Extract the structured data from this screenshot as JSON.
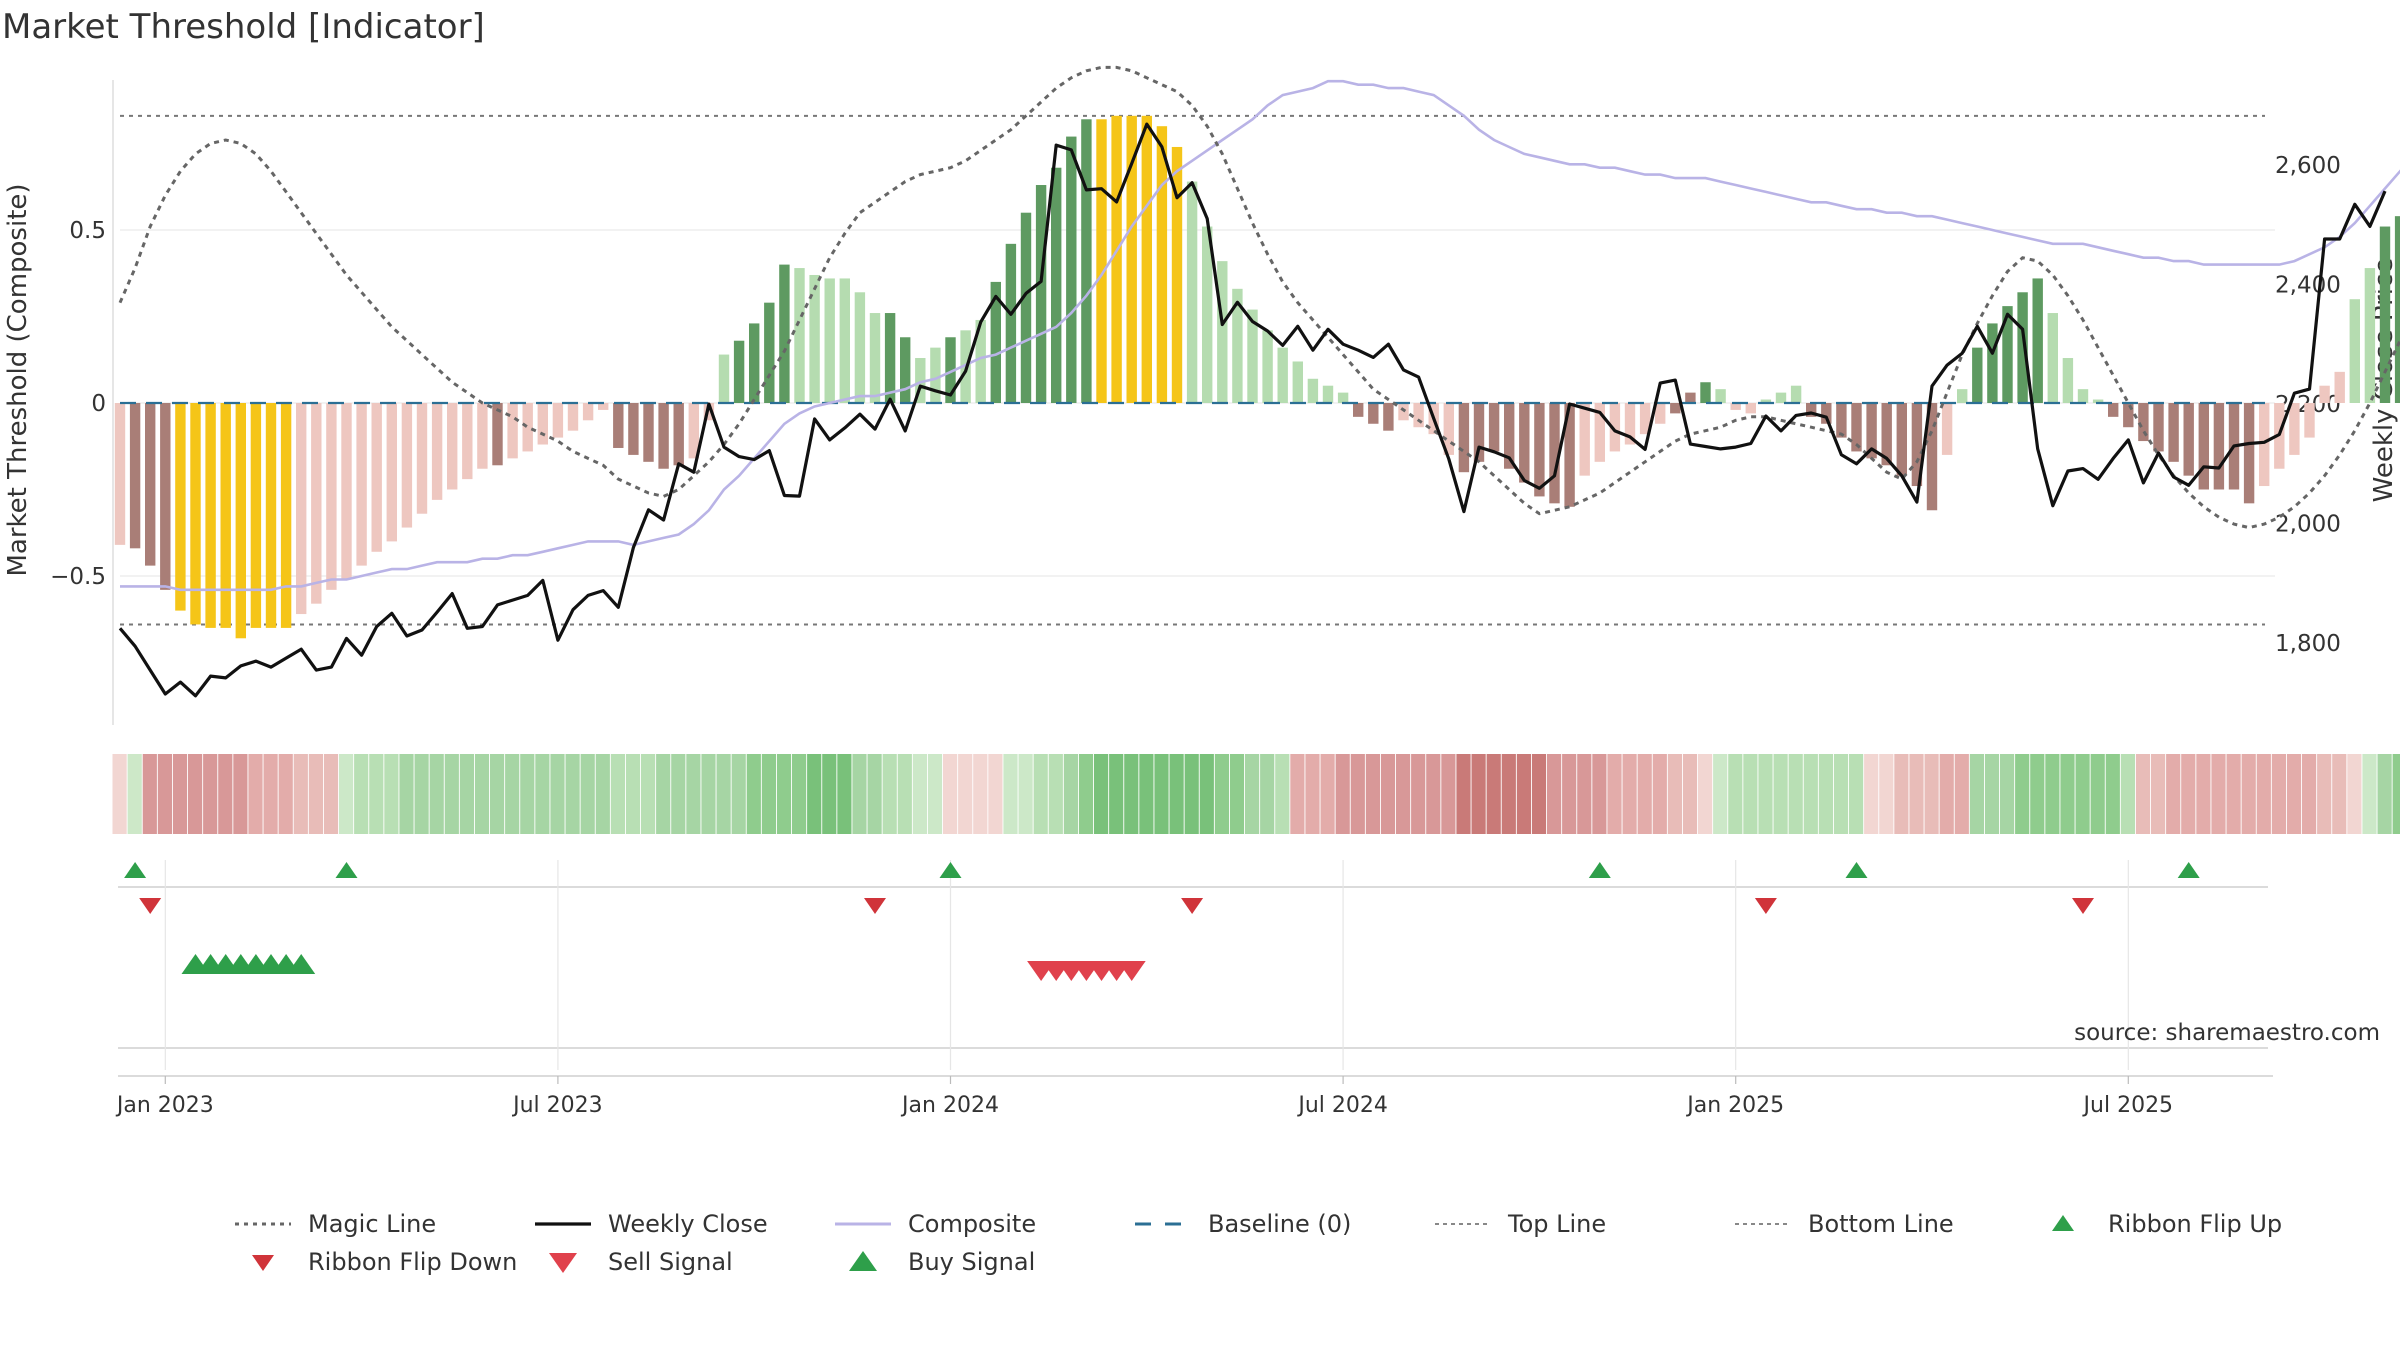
{
  "chart_data": {
    "type": "bar",
    "title": "Market Threshold [Indicator]",
    "ylabel_left": "Market Threshold (Composite)",
    "ylabel_right": "Weekly Close Price",
    "source": "source: sharemaestro.com",
    "x_ticks": [
      "Jan 2023",
      "Jul 2023",
      "Jan 2024",
      "Jul 2024",
      "Jan 2025",
      "Jul 2025"
    ],
    "x_tick_weeks": [
      3,
      29,
      55,
      81,
      107,
      133
    ],
    "left_ticks": [
      "0.5",
      "0",
      "−0.5"
    ],
    "left_tick_values": [
      0.5,
      0,
      -0.5
    ],
    "right_ticks": [
      "2,600",
      "2,400",
      "2,200",
      "2,000",
      "1,800"
    ],
    "right_tick_values": [
      2600,
      2400,
      2200,
      2000,
      1800
    ],
    "ylim_left": [
      -0.93,
      0.93
    ],
    "ylim_right": [
      1660,
      2680
    ],
    "top_line": 0.83,
    "bottom_line": -0.64,
    "composite": [
      -0.41,
      -0.42,
      -0.47,
      -0.54,
      -0.6,
      -0.64,
      -0.65,
      -0.65,
      -0.68,
      -0.65,
      -0.65,
      -0.65,
      -0.61,
      -0.58,
      -0.54,
      -0.51,
      -0.47,
      -0.43,
      -0.4,
      -0.36,
      -0.32,
      -0.28,
      -0.25,
      -0.22,
      -0.19,
      -0.18,
      -0.16,
      -0.14,
      -0.12,
      -0.1,
      -0.08,
      -0.05,
      -0.02,
      -0.13,
      -0.15,
      -0.17,
      -0.19,
      -0.18,
      -0.16,
      -0.05,
      0.14,
      0.18,
      0.23,
      0.29,
      0.4,
      0.39,
      0.37,
      0.36,
      0.36,
      0.32,
      0.26,
      0.26,
      0.19,
      0.13,
      0.16,
      0.19,
      0.21,
      0.24,
      0.35,
      0.46,
      0.55,
      0.63,
      0.68,
      0.77,
      0.82,
      0.82,
      0.83,
      0.83,
      0.83,
      0.8,
      0.74,
      0.64,
      0.51,
      0.41,
      0.33,
      0.27,
      0.21,
      0.16,
      0.12,
      0.07,
      0.05,
      0.03,
      -0.04,
      -0.06,
      -0.08,
      -0.05,
      -0.07,
      -0.09,
      -0.15,
      -0.2,
      -0.17,
      -0.14,
      -0.19,
      -0.23,
      -0.27,
      -0.29,
      -0.3,
      -0.21,
      -0.17,
      -0.14,
      -0.12,
      -0.09,
      -0.06,
      -0.03,
      0.03,
      0.06,
      0.04,
      -0.02,
      -0.03,
      0.01,
      0.03,
      0.05,
      -0.04,
      -0.06,
      -0.1,
      -0.14,
      -0.16,
      -0.18,
      -0.21,
      -0.24,
      -0.31,
      -0.15,
      0.04,
      0.16,
      0.23,
      0.28,
      0.32,
      0.36,
      0.26,
      0.13,
      0.04,
      0.01,
      -0.04,
      -0.07,
      -0.11,
      -0.14,
      -0.17,
      -0.21,
      -0.25,
      -0.25,
      -0.25,
      -0.29,
      -0.24,
      -0.19,
      -0.15,
      -0.1,
      0.05,
      0.09,
      0.3,
      0.39,
      0.51,
      0.54,
      0.6
    ],
    "bar_colors": [
      "#eec7c0",
      "#a97e77",
      "#a97e77",
      "#a97e77",
      "#f5c518",
      "#f5c518",
      "#f5c518",
      "#f5c518",
      "#f5c518",
      "#f5c518",
      "#f5c518",
      "#f5c518",
      "#eec7c0",
      "#eec7c0",
      "#eec7c0",
      "#eec7c0",
      "#eec7c0",
      "#eec7c0",
      "#eec7c0",
      "#eec7c0",
      "#eec7c0",
      "#eec7c0",
      "#eec7c0",
      "#eec7c0",
      "#eec7c0",
      "#a97e77",
      "#eec7c0",
      "#eec7c0",
      "#eec7c0",
      "#eec7c0",
      "#eec7c0",
      "#eec7c0",
      "#eec7c0",
      "#a97e77",
      "#a97e77",
      "#a97e77",
      "#a97e77",
      "#a97e77",
      "#eec7c0",
      "#eec7c0",
      "#b5dcb0",
      "#5e9a61",
      "#5e9a61",
      "#5e9a61",
      "#5e9a61",
      "#b5dcb0",
      "#b5dcb0",
      "#b5dcb0",
      "#b5dcb0",
      "#b5dcb0",
      "#b5dcb0",
      "#5e9a61",
      "#5e9a61",
      "#b5dcb0",
      "#b5dcb0",
      "#5e9a61",
      "#b5dcb0",
      "#b5dcb0",
      "#5e9a61",
      "#5e9a61",
      "#5e9a61",
      "#5e9a61",
      "#5e9a61",
      "#5e9a61",
      "#5e9a61",
      "#f5c518",
      "#f5c518",
      "#f5c518",
      "#f5c518",
      "#f5c518",
      "#f5c518",
      "#b5dcb0",
      "#b5dcb0",
      "#b5dcb0",
      "#b5dcb0",
      "#b5dcb0",
      "#b5dcb0",
      "#b5dcb0",
      "#b5dcb0",
      "#b5dcb0",
      "#b5dcb0",
      "#b5dcb0",
      "#a97e77",
      "#a97e77",
      "#a97e77",
      "#eec7c0",
      "#eec7c0",
      "#eec7c0",
      "#eec7c0",
      "#a97e77",
      "#a97e77",
      "#a97e77",
      "#a97e77",
      "#a97e77",
      "#a97e77",
      "#a97e77",
      "#a97e77",
      "#eec7c0",
      "#eec7c0",
      "#eec7c0",
      "#eec7c0",
      "#eec7c0",
      "#eec7c0",
      "#a97e77",
      "#a97e77",
      "#5e9a61",
      "#b5dcb0",
      "#eec7c0",
      "#eec7c0",
      "#b5dcb0",
      "#b5dcb0",
      "#b5dcb0",
      "#a97e77",
      "#a97e77",
      "#a97e77",
      "#a97e77",
      "#a97e77",
      "#a97e77",
      "#a97e77",
      "#a97e77",
      "#a97e77",
      "#eec7c0",
      "#b5dcb0",
      "#5e9a61",
      "#5e9a61",
      "#5e9a61",
      "#5e9a61",
      "#5e9a61",
      "#b5dcb0",
      "#b5dcb0",
      "#b5dcb0",
      "#b5dcb0",
      "#a97e77",
      "#a97e77",
      "#a97e77",
      "#a97e77",
      "#a97e77",
      "#a97e77",
      "#a97e77",
      "#a97e77",
      "#a97e77",
      "#a97e77",
      "#eec7c0",
      "#eec7c0",
      "#eec7c0",
      "#eec7c0",
      "#eec7c0",
      "#eec7c0",
      "#b5dcb0",
      "#b5dcb0",
      "#5e9a61",
      "#5e9a61",
      "#5e9a61",
      "#5e9a61",
      "#5e9a61"
    ],
    "weekly_close": [
      1825,
      1795,
      1755,
      1715,
      1735,
      1712,
      1745,
      1742,
      1762,
      1770,
      1760,
      1775,
      1790,
      1755,
      1760,
      1808,
      1780,
      1828,
      1850,
      1812,
      1822,
      1852,
      1883,
      1825,
      1828,
      1864,
      1872,
      1880,
      1905,
      1805,
      1856,
      1880,
      1888,
      1860,
      1960,
      2023,
      2006,
      2100,
      2086,
      2200,
      2128,
      2112,
      2107,
      2122,
      2047,
      2046,
      2175,
      2140,
      2160,
      2183,
      2158,
      2208,
      2155,
      2230,
      2222,
      2215,
      2255,
      2337,
      2380,
      2350,
      2385,
      2405,
      2633,
      2625,
      2558,
      2560,
      2538,
      2602,
      2668,
      2630,
      2545,
      2570,
      2510,
      2333,
      2370,
      2338,
      2322,
      2298,
      2330,
      2290,
      2325,
      2300,
      2290,
      2278,
      2300,
      2257,
      2245,
      2176,
      2108,
      2020,
      2128,
      2120,
      2110,
      2072,
      2059,
      2080,
      2200,
      2193,
      2186,
      2155,
      2145,
      2124,
      2235,
      2240,
      2133,
      2129,
      2125,
      2128,
      2134,
      2180,
      2155,
      2181,
      2185,
      2178,
      2115,
      2100,
      2125,
      2109,
      2080,
      2036,
      2230,
      2265,
      2285,
      2330,
      2285,
      2350,
      2325,
      2125,
      2030,
      2088,
      2092,
      2074,
      2109,
      2140,
      2068,
      2118,
      2078,
      2064,
      2095,
      2093,
      2130,
      2134,
      2136,
      2149,
      2218,
      2225,
      2476,
      2476,
      2534,
      2497,
      2556
    ],
    "magic_line": [
      0.29,
      0.39,
      0.51,
      0.6,
      0.67,
      0.72,
      0.75,
      0.76,
      0.75,
      0.72,
      0.67,
      0.61,
      0.55,
      0.49,
      0.43,
      0.37,
      0.32,
      0.27,
      0.22,
      0.18,
      0.14,
      0.1,
      0.06,
      0.03,
      0.0,
      -0.02,
      -0.04,
      -0.07,
      -0.09,
      -0.11,
      -0.14,
      -0.16,
      -0.18,
      -0.22,
      -0.24,
      -0.26,
      -0.27,
      -0.25,
      -0.21,
      -0.17,
      -0.12,
      -0.06,
      0.01,
      0.08,
      0.15,
      0.24,
      0.33,
      0.42,
      0.49,
      0.55,
      0.58,
      0.61,
      0.64,
      0.66,
      0.67,
      0.68,
      0.7,
      0.73,
      0.76,
      0.79,
      0.83,
      0.87,
      0.91,
      0.94,
      0.96,
      0.97,
      0.97,
      0.96,
      0.94,
      0.92,
      0.9,
      0.86,
      0.8,
      0.72,
      0.62,
      0.52,
      0.43,
      0.35,
      0.29,
      0.24,
      0.19,
      0.14,
      0.09,
      0.04,
      0.01,
      -0.02,
      -0.05,
      -0.08,
      -0.11,
      -0.14,
      -0.17,
      -0.21,
      -0.25,
      -0.29,
      -0.32,
      -0.31,
      -0.3,
      -0.28,
      -0.26,
      -0.23,
      -0.2,
      -0.17,
      -0.14,
      -0.11,
      -0.09,
      -0.08,
      -0.07,
      -0.05,
      -0.04,
      -0.04,
      -0.05,
      -0.06,
      -0.07,
      -0.08,
      -0.09,
      -0.12,
      -0.16,
      -0.2,
      -0.22,
      -0.17,
      -0.08,
      0.03,
      0.14,
      0.23,
      0.31,
      0.38,
      0.42,
      0.41,
      0.37,
      0.31,
      0.24,
      0.16,
      0.08,
      0.0,
      -0.08,
      -0.15,
      -0.21,
      -0.26,
      -0.3,
      -0.33,
      -0.35,
      -0.36,
      -0.35,
      -0.33,
      -0.3,
      -0.26,
      -0.21,
      -0.15,
      -0.08,
      0.0,
      0.09,
      0.18,
      0.27,
      0.35
    ],
    "composite_line": [
      -0.53,
      -0.53,
      -0.53,
      -0.53,
      -0.54,
      -0.54,
      -0.54,
      -0.54,
      -0.54,
      -0.54,
      -0.54,
      -0.53,
      -0.53,
      -0.52,
      -0.51,
      -0.51,
      -0.5,
      -0.49,
      -0.48,
      -0.48,
      -0.47,
      -0.46,
      -0.46,
      -0.46,
      -0.45,
      -0.45,
      -0.44,
      -0.44,
      -0.43,
      -0.42,
      -0.41,
      -0.4,
      -0.4,
      -0.4,
      -0.41,
      -0.4,
      -0.39,
      -0.38,
      -0.35,
      -0.31,
      -0.25,
      -0.21,
      -0.16,
      -0.11,
      -0.06,
      -0.03,
      -0.01,
      0.0,
      0.01,
      0.02,
      0.02,
      0.03,
      0.04,
      0.06,
      0.07,
      0.09,
      0.11,
      0.13,
      0.14,
      0.16,
      0.18,
      0.2,
      0.22,
      0.26,
      0.31,
      0.37,
      0.44,
      0.51,
      0.57,
      0.63,
      0.67,
      0.7,
      0.73,
      0.76,
      0.79,
      0.82,
      0.86,
      0.89,
      0.9,
      0.91,
      0.93,
      0.93,
      0.92,
      0.92,
      0.91,
      0.91,
      0.9,
      0.89,
      0.86,
      0.83,
      0.79,
      0.76,
      0.74,
      0.72,
      0.71,
      0.7,
      0.69,
      0.69,
      0.68,
      0.68,
      0.67,
      0.66,
      0.66,
      0.65,
      0.65,
      0.65,
      0.64,
      0.63,
      0.62,
      0.61,
      0.6,
      0.59,
      0.58,
      0.58,
      0.57,
      0.56,
      0.56,
      0.55,
      0.55,
      0.54,
      0.54,
      0.53,
      0.52,
      0.51,
      0.5,
      0.49,
      0.48,
      0.47,
      0.46,
      0.46,
      0.46,
      0.45,
      0.44,
      0.43,
      0.42,
      0.42,
      0.41,
      0.41,
      0.4,
      0.4,
      0.4,
      0.4,
      0.4,
      0.4,
      0.41,
      0.43,
      0.45,
      0.48,
      0.52,
      0.57,
      0.62,
      0.67,
      0.72,
      0.77
    ],
    "ribbon_colors": [
      "#f2d6d2",
      "#cde8c8",
      "#d89898",
      "#d89898",
      "#d89898",
      "#d89898",
      "#d89898",
      "#d89898",
      "#d89898",
      "#e3acaa",
      "#e3acaa",
      "#e3acaa",
      "#e8bcb8",
      "#e8bcb8",
      "#e8bcb8",
      "#cce8c8",
      "#b8dfb4",
      "#b8dfb4",
      "#b8dfb4",
      "#a6d5a4",
      "#a6d5a4",
      "#a6d5a4",
      "#a6d5a4",
      "#a6d5a4",
      "#a6d5a4",
      "#a6d5a4",
      "#a6d5a4",
      "#a6d5a4",
      "#a6d5a4",
      "#a6d5a4",
      "#a6d5a4",
      "#a6d5a4",
      "#a6d5a4",
      "#b8dfb4",
      "#b8dfb4",
      "#b8dfb4",
      "#a6d5a4",
      "#a6d5a4",
      "#a6d5a4",
      "#a6d5a4",
      "#a6d5a4",
      "#a6d5a4",
      "#8fcc8d",
      "#8fcc8d",
      "#8fcc8d",
      "#8fcc8d",
      "#79c17a",
      "#79c17a",
      "#79c17a",
      "#a6d5a4",
      "#a6d5a4",
      "#b8dfb4",
      "#b8dfb4",
      "#cce8c8",
      "#cce8c8",
      "#f2d6d2",
      "#f2d6d2",
      "#f2d6d2",
      "#f2d6d2",
      "#cce8c8",
      "#cce8c8",
      "#b8dfb4",
      "#b8dfb4",
      "#a6d5a4",
      "#8fcc8d",
      "#79c17a",
      "#79c17a",
      "#79c17a",
      "#79c17a",
      "#79c17a",
      "#79c17a",
      "#79c17a",
      "#79c17a",
      "#8fcc8d",
      "#8fcc8d",
      "#a6d5a4",
      "#a6d5a4",
      "#b8dfb4",
      "#e3acaa",
      "#e3acaa",
      "#e3acaa",
      "#d89898",
      "#d89898",
      "#d89898",
      "#d89898",
      "#d89898",
      "#d89898",
      "#d89898",
      "#d89898",
      "#c97a78",
      "#c97a78",
      "#c97a78",
      "#c97a78",
      "#c97a78",
      "#c97a78",
      "#d89898",
      "#d89898",
      "#d89898",
      "#d89898",
      "#e3acaa",
      "#e3acaa",
      "#e3acaa",
      "#e3acaa",
      "#e8bcb8",
      "#e8bcb8",
      "#f2d6d2",
      "#cce8c8",
      "#b8dfb4",
      "#b8dfb4",
      "#b8dfb4",
      "#b8dfb4",
      "#b8dfb4",
      "#b8dfb4",
      "#b8dfb4",
      "#b8dfb4",
      "#b8dfb4",
      "#f2d6d2",
      "#f2d6d2",
      "#e8bcb8",
      "#e8bcb8",
      "#e8bcb8",
      "#e3acaa",
      "#e3acaa",
      "#a6d5a4",
      "#a6d5a4",
      "#a6d5a4",
      "#8fcc8d",
      "#8fcc8d",
      "#8fcc8d",
      "#8fcc8d",
      "#8fcc8d",
      "#8fcc8d",
      "#8fcc8d",
      "#b8dfb4",
      "#e8bcb8",
      "#e8bcb8",
      "#e3acaa",
      "#e3acaa",
      "#e3acaa",
      "#e3acaa",
      "#e3acaa",
      "#e3acaa",
      "#e3acaa",
      "#e3acaa",
      "#e3acaa",
      "#e3acaa",
      "#e8bcb8",
      "#e8bcb8",
      "#f2d6d2",
      "#cce8c8",
      "#a6d5a4",
      "#8fcc8d",
      "#79c17a",
      "#79c17a",
      "#5bb562",
      "#3da84a"
    ],
    "ribbon_flip_up_weeks": [
      1,
      15,
      55,
      98,
      115,
      137
    ],
    "ribbon_flip_down_weeks": [
      2,
      50,
      71,
      109,
      130
    ],
    "buy_signal_weeks": [
      5,
      6,
      7,
      8,
      9,
      10,
      11,
      12
    ],
    "sell_signal_weeks": [
      61,
      62,
      63,
      64,
      65,
      66,
      67
    ],
    "legend": [
      "Magic Line",
      "Weekly Close",
      "Composite",
      "Baseline (0)",
      "Top Line",
      "Bottom Line",
      "Ribbon Flip Up",
      "Ribbon Flip Down",
      "Sell Signal",
      "Buy Signal"
    ],
    "colors": {
      "close": "#111111",
      "magic": "#666666",
      "composite_line": "#b9b3e6",
      "baseline": "#2b6f94",
      "flip_up": "#2e9f4a",
      "flip_down": "#d0343a",
      "sell": "#e0414c",
      "buy": "#2e9f4a",
      "grid": "#e6e6e6"
    }
  }
}
